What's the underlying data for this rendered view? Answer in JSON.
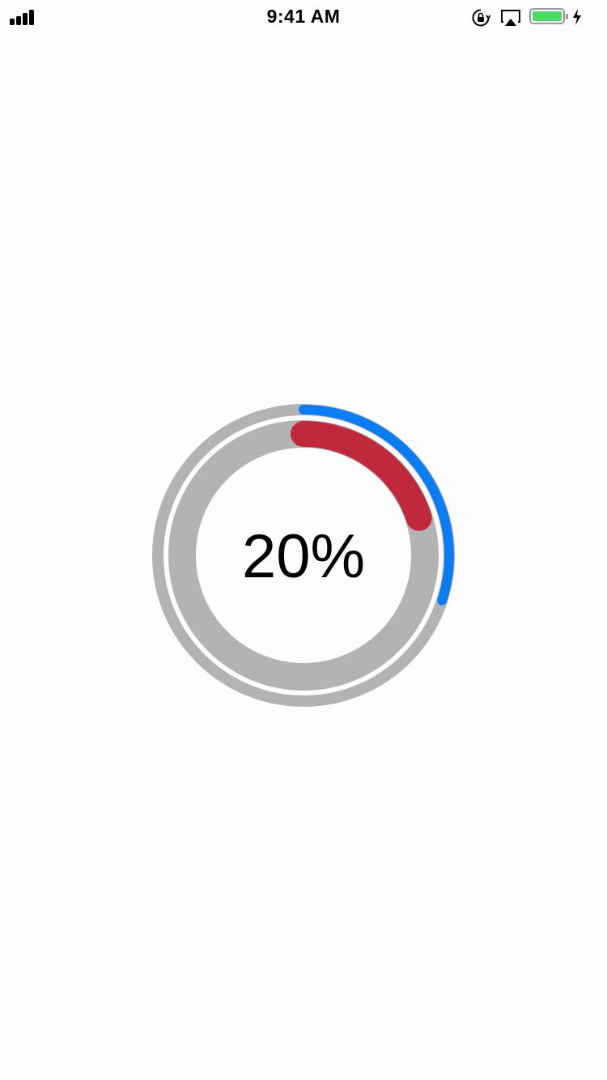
{
  "status_bar": {
    "time": "9:41 AM",
    "icons": [
      "signal-icon",
      "rotation-lock-icon",
      "airplay-icon",
      "battery-icon",
      "charging-bolt-icon"
    ],
    "battery_level": 1.0,
    "battery_color": "#4cd964"
  },
  "progress": {
    "label": "20%",
    "inner_progress": 0.2,
    "outer_progress": 0.3,
    "inner_color": "#c0283c",
    "outer_color": "#0a7cf5",
    "track_color": "#b3b3b3"
  }
}
